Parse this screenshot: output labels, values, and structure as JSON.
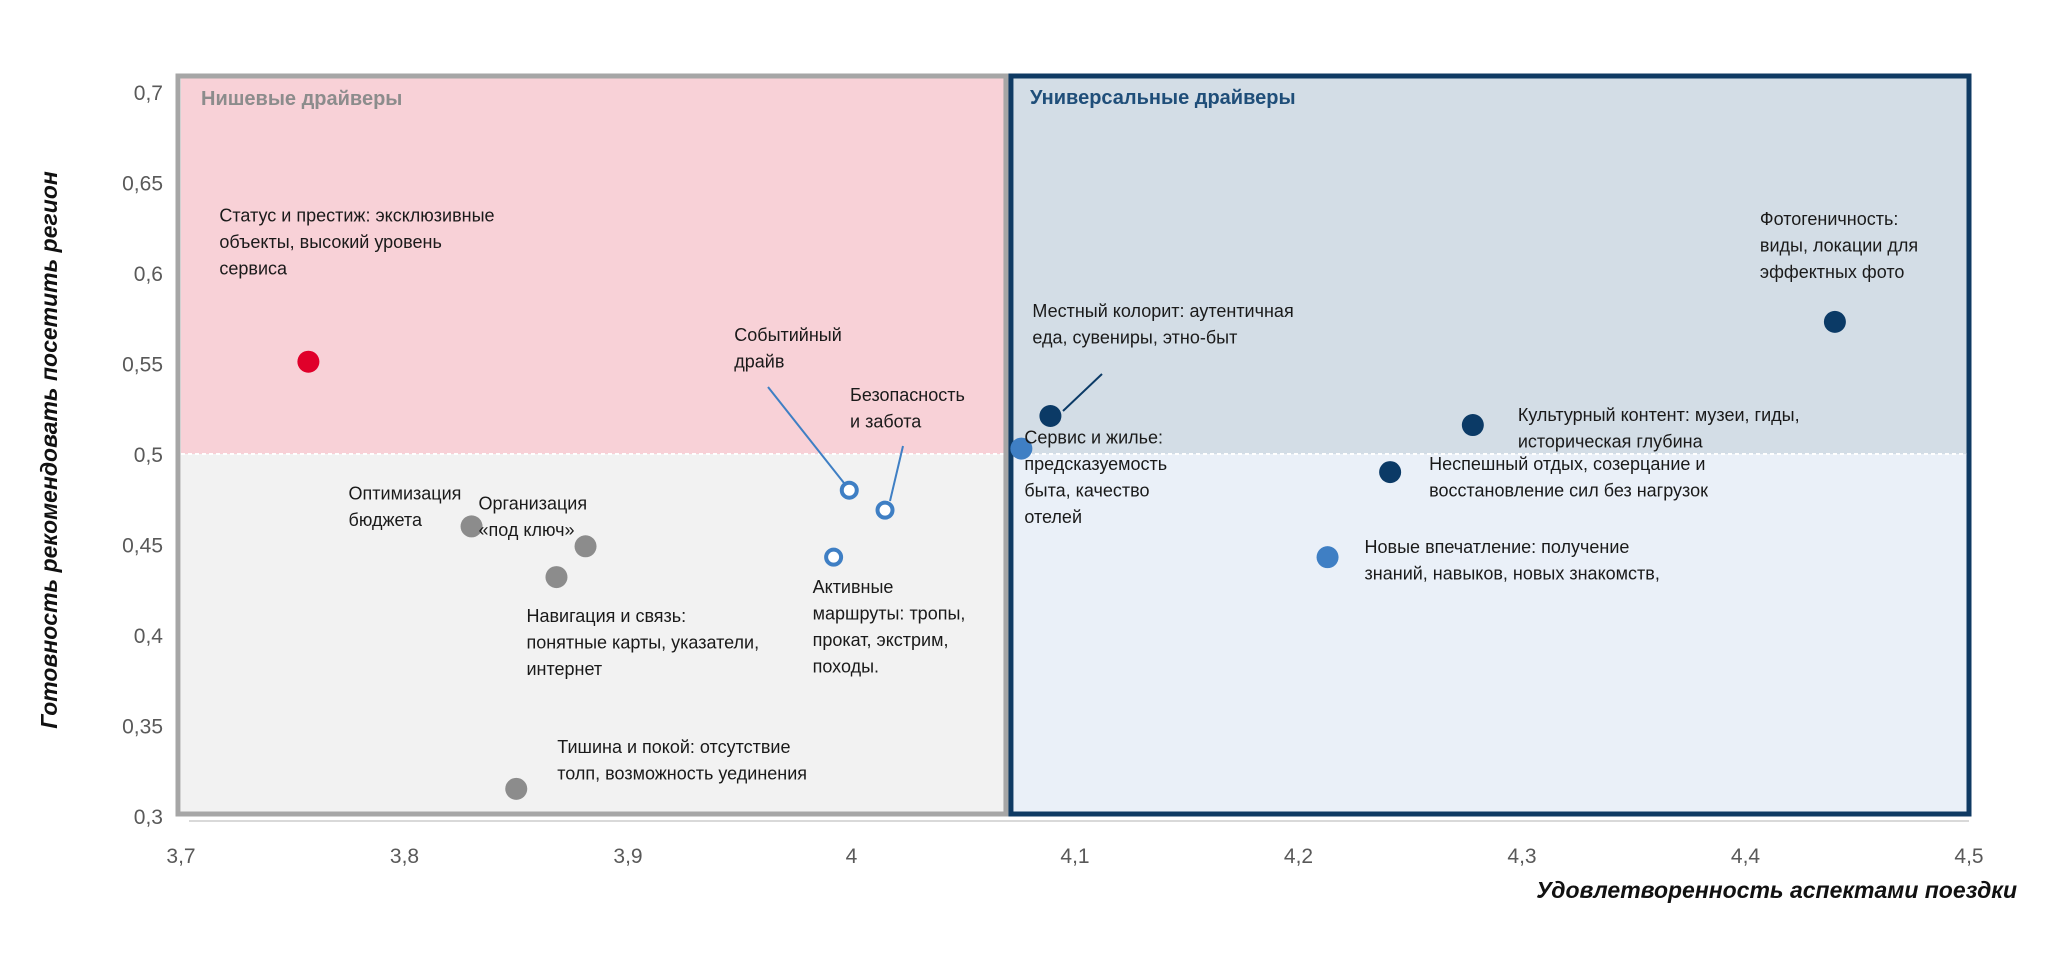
{
  "chart_data": {
    "type": "scatter",
    "xlabel": "Удовлетворенность аспектами поездки",
    "ylabel": "Готовность рекомендовать посетить регион",
    "xlim": [
      3.7,
      4.5
    ],
    "ylim": [
      0.3,
      0.7
    ],
    "x_ticks": [
      "3,7",
      "3,8",
      "3,9",
      "4",
      "4,1",
      "4,2",
      "4,3",
      "4,4",
      "4,5"
    ],
    "y_ticks": [
      "0,3",
      "0,35",
      "0,4",
      "0,45",
      "0,5",
      "0,55",
      "0,6",
      "0,65",
      "0,7"
    ],
    "grid": false,
    "quadrants": {
      "x_split": 4.07,
      "y_split": 0.5,
      "left_title": "Нишевые драйверы",
      "right_title": "Универсальные драйверы",
      "colors": {
        "left_top": "#f8d1d7",
        "left_bottom": "#f2f2f2",
        "left_border": "#a6a6a6",
        "right_top": "#d3dde6",
        "right_bottom": "#eaf0f8",
        "right_border": "#0f3a63",
        "left_title": "#8c8c8c",
        "right_title": "#1f4e79"
      }
    },
    "marker_colors": {
      "red": "#e0002a",
      "gray": "#8c8c8c",
      "navy": "#0b3a66",
      "blue": "#3f7fc4"
    },
    "points": [
      {
        "x": 3.757,
        "y": 0.551,
        "style": "red",
        "label": [
          "Статус и престиж: эксклюзивные",
          "объекты, высокий уровень",
          "сервиса"
        ]
      },
      {
        "x": 3.83,
        "y": 0.46,
        "style": "gray",
        "label": [
          "Оптимизация",
          "бюджета"
        ]
      },
      {
        "x": 3.881,
        "y": 0.449,
        "style": "gray",
        "label": [
          "Организация",
          "«под ключ»"
        ]
      },
      {
        "x": 3.868,
        "y": 0.432,
        "style": "gray",
        "label": [
          "Навигация и связь:",
          "понятные карты, указатели,",
          "интернет"
        ]
      },
      {
        "x": 3.85,
        "y": 0.315,
        "style": "gray",
        "label": [
          "Тишина и покой: отсутствие",
          "толп, возможность уединения"
        ]
      },
      {
        "x": 3.999,
        "y": 0.48,
        "style": "hollow",
        "label": [
          "Событийный",
          "драйв"
        ]
      },
      {
        "x": 4.015,
        "y": 0.469,
        "style": "hollow",
        "label": [
          "Безопасность",
          "и забота"
        ]
      },
      {
        "x": 3.992,
        "y": 0.443,
        "style": "hollow",
        "label": [
          "Активные",
          "маршруты: тропы,",
          "прокат, экстрим,",
          "походы."
        ]
      },
      {
        "x": 4.076,
        "y": 0.503,
        "style": "blue",
        "label": [
          "Сервис и жилье:",
          "предсказуемость",
          "быта, качество",
          "отелей"
        ]
      },
      {
        "x": 4.089,
        "y": 0.521,
        "style": "navy",
        "label": [
          "Местный колорит: аутентичная",
          "еда, сувениры, этно-быт"
        ]
      },
      {
        "x": 4.278,
        "y": 0.516,
        "style": "navy",
        "label": [
          "Культурный контент: музеи, гиды,",
          "историческая глубина"
        ]
      },
      {
        "x": 4.241,
        "y": 0.49,
        "style": "navy",
        "label": [
          "Неспешный отдых, созерцание и",
          "восстановление сил без нагрузок"
        ]
      },
      {
        "x": 4.213,
        "y": 0.443,
        "style": "blue",
        "label": [
          "Новые впечатление: получение",
          "знаний, навыков, новых знакомств,"
        ]
      },
      {
        "x": 4.44,
        "y": 0.573,
        "style": "navy",
        "label": [
          "Фотогеничность:",
          "виды, локации для",
          "эффектных фото"
        ]
      }
    ]
  }
}
